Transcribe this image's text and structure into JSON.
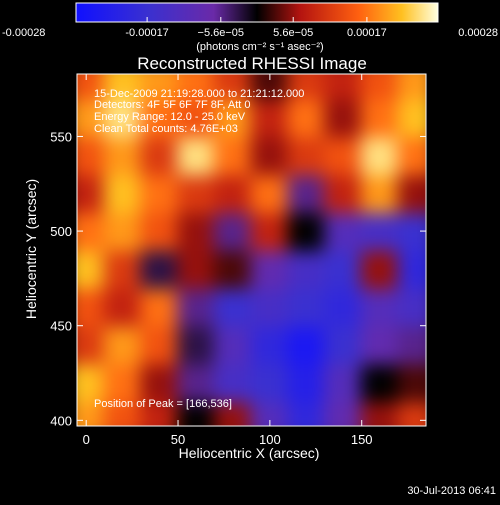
{
  "chart_data": {
    "type": "heatmap",
    "title": "Reconstructed RHESSI Image",
    "xlabel": "Heliocentric X (arcsec)",
    "ylabel": "Heliocentric Y (arcsec)",
    "xlim": [
      -5,
      185
    ],
    "ylim": [
      397,
      583
    ],
    "x_ticks": [
      0,
      50,
      100,
      150
    ],
    "y_ticks": [
      400,
      450,
      500,
      550
    ],
    "annotations": [
      "15-Dec-2009 21:19:28.000 to 21:21:12.000",
      "Detectors: 4F 5F 6F 7F 8F, Att 0",
      "Energy Range: 12.0 - 25.0 keV",
      "Clean     Total counts: 4.76E+03"
    ],
    "peak_note": "Position of Peak = [166,536]",
    "colorbar": {
      "range": [
        -0.00028,
        0.00028
      ],
      "tick_values": [
        -0.00028,
        -0.00017,
        -5.6e-05,
        5.6e-05,
        0.00017,
        0.00028
      ],
      "tick_labels": [
        "-0.00028",
        "-0.00017",
        "−5.6e−05",
        "5.6e−05",
        "0.00017",
        "0.00028"
      ],
      "unit_label": "(photons cm⁻² s⁻¹ asec⁻²)"
    },
    "grid_x": [
      0,
      20,
      40,
      60,
      80,
      100,
      120,
      140,
      160,
      180
    ],
    "grid_y": [
      400,
      420,
      440,
      460,
      480,
      500,
      520,
      540,
      560,
      580
    ],
    "values": [
      [
        0.7,
        0.5,
        0.3,
        0.0,
        0.2,
        -0.4,
        -0.7,
        -0.3,
        0.2,
        0.4
      ],
      [
        0.8,
        0.6,
        0.2,
        -0.2,
        -0.5,
        -0.6,
        -0.8,
        -0.4,
        0.0,
        0.1
      ],
      [
        0.4,
        0.7,
        0.5,
        -0.1,
        -0.4,
        -0.7,
        -0.9,
        -0.6,
        -0.3,
        -0.2
      ],
      [
        0.5,
        0.3,
        0.6,
        -0.2,
        -0.6,
        -0.5,
        -0.6,
        -0.7,
        -0.4,
        -0.5
      ],
      [
        0.8,
        0.4,
        -0.1,
        0.2,
        0.1,
        -0.3,
        -0.5,
        -0.6,
        0.2,
        -0.7
      ],
      [
        0.6,
        0.7,
        0.5,
        0.2,
        -0.2,
        0.3,
        0.0,
        -0.4,
        -0.5,
        -0.6
      ],
      [
        0.3,
        0.8,
        0.6,
        0.4,
        0.3,
        0.6,
        -0.2,
        0.3,
        0.7,
        0.2
      ],
      [
        0.5,
        0.7,
        0.4,
        0.9,
        0.6,
        0.2,
        0.4,
        0.5,
        0.9,
        0.6
      ],
      [
        0.7,
        0.9,
        0.6,
        0.5,
        0.7,
        0.3,
        0.6,
        0.2,
        0.6,
        0.8
      ],
      [
        0.5,
        0.8,
        0.7,
        0.6,
        0.4,
        0.1,
        0.4,
        0.3,
        0.5,
        0.7
      ]
    ]
  },
  "footer": {
    "timestamp": "30-Jul-2013 06:41"
  }
}
